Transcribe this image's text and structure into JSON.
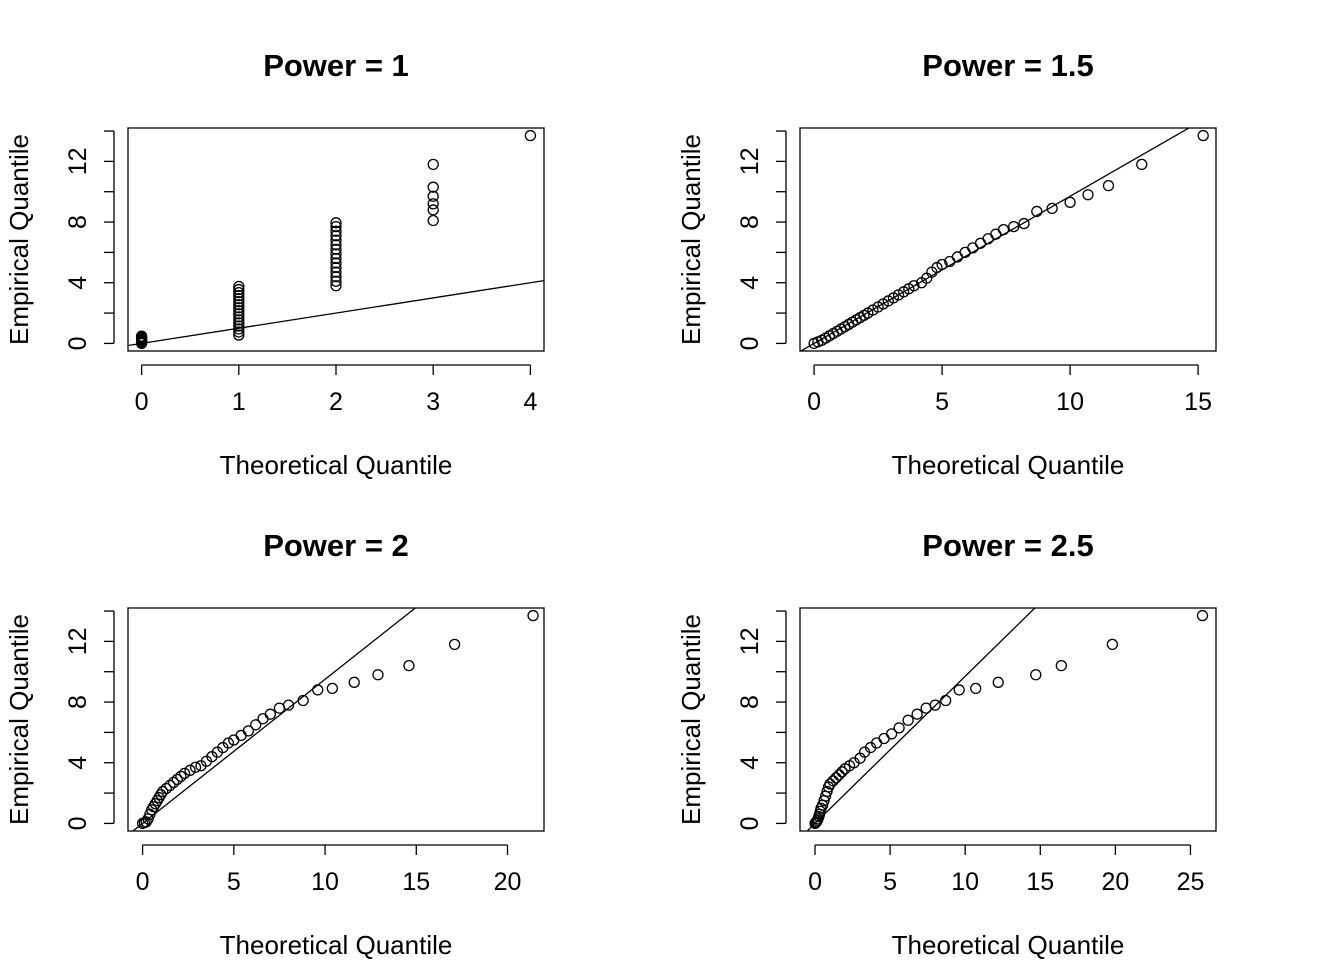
{
  "chart_data": [
    {
      "type": "scatter",
      "title": "Power =  1",
      "xlabel": "Theoretical Quantile",
      "ylabel": "Empirical Quantile",
      "xlim": [
        -0.14,
        4.14
      ],
      "ylim": [
        -0.5,
        14.2
      ],
      "xticks": [
        "0",
        "1",
        "2",
        "3",
        "4"
      ],
      "yticks": [
        "0",
        "4",
        "8",
        "12"
      ],
      "reference_line": {
        "intercept": 0,
        "slope": 1
      },
      "points": [
        [
          0,
          0.0
        ],
        [
          0,
          0.06
        ],
        [
          0,
          0.12
        ],
        [
          0,
          0.18
        ],
        [
          0,
          0.24
        ],
        [
          0,
          0.3
        ],
        [
          0,
          0.36
        ],
        [
          0,
          0.42
        ],
        [
          0,
          0.48
        ],
        [
          1,
          0.55
        ],
        [
          1,
          0.75
        ],
        [
          1,
          0.95
        ],
        [
          1,
          1.15
        ],
        [
          1,
          1.35
        ],
        [
          1,
          1.55
        ],
        [
          1,
          1.75
        ],
        [
          1,
          1.95
        ],
        [
          1,
          2.15
        ],
        [
          1,
          2.35
        ],
        [
          1,
          2.55
        ],
        [
          1,
          2.75
        ],
        [
          1,
          2.95
        ],
        [
          1,
          3.15
        ],
        [
          1,
          3.35
        ],
        [
          1,
          3.55
        ],
        [
          1,
          3.75
        ],
        [
          2,
          3.8
        ],
        [
          2,
          4.1
        ],
        [
          2,
          4.4
        ],
        [
          2,
          4.7
        ],
        [
          2,
          5.0
        ],
        [
          2,
          5.3
        ],
        [
          2,
          5.6
        ],
        [
          2,
          5.9
        ],
        [
          2,
          6.2
        ],
        [
          2,
          6.5
        ],
        [
          2,
          6.8
        ],
        [
          2,
          7.1
        ],
        [
          2,
          7.4
        ],
        [
          2,
          7.7
        ],
        [
          2,
          7.95
        ],
        [
          3,
          8.1
        ],
        [
          3,
          8.8
        ],
        [
          3,
          9.2
        ],
        [
          3,
          9.7
        ],
        [
          3,
          10.3
        ],
        [
          3,
          11.8
        ],
        [
          4,
          13.7
        ]
      ]
    },
    {
      "type": "scatter",
      "title": "Power =  1.5",
      "xlabel": "Theoretical Quantile",
      "ylabel": "Empirical Quantile",
      "xlim": [
        -0.55,
        15.7
      ],
      "ylim": [
        -0.5,
        14.2
      ],
      "xticks": [
        "0",
        "5",
        "10",
        "15"
      ],
      "yticks": [
        "0",
        "4",
        "8",
        "12"
      ],
      "reference_line": {
        "intercept": 0,
        "slope": 0.97
      },
      "points": [
        [
          0.0,
          0.0
        ],
        [
          0.15,
          0.1
        ],
        [
          0.3,
          0.2
        ],
        [
          0.45,
          0.35
        ],
        [
          0.6,
          0.5
        ],
        [
          0.75,
          0.65
        ],
        [
          0.9,
          0.8
        ],
        [
          1.05,
          0.95
        ],
        [
          1.2,
          1.1
        ],
        [
          1.35,
          1.25
        ],
        [
          1.5,
          1.4
        ],
        [
          1.65,
          1.55
        ],
        [
          1.8,
          1.7
        ],
        [
          1.95,
          1.85
        ],
        [
          2.1,
          2.0
        ],
        [
          2.3,
          2.2
        ],
        [
          2.5,
          2.4
        ],
        [
          2.7,
          2.6
        ],
        [
          2.9,
          2.8
        ],
        [
          3.1,
          3.0
        ],
        [
          3.3,
          3.2
        ],
        [
          3.5,
          3.4
        ],
        [
          3.7,
          3.6
        ],
        [
          3.9,
          3.8
        ],
        [
          4.2,
          4.0
        ],
        [
          4.4,
          4.3
        ],
        [
          4.6,
          4.7
        ],
        [
          4.8,
          5.0
        ],
        [
          5.0,
          5.2
        ],
        [
          5.3,
          5.4
        ],
        [
          5.6,
          5.7
        ],
        [
          5.9,
          6.0
        ],
        [
          6.2,
          6.3
        ],
        [
          6.5,
          6.6
        ],
        [
          6.8,
          6.9
        ],
        [
          7.1,
          7.2
        ],
        [
          7.4,
          7.5
        ],
        [
          7.8,
          7.7
        ],
        [
          8.2,
          7.9
        ],
        [
          8.7,
          8.7
        ],
        [
          9.3,
          8.9
        ],
        [
          10.0,
          9.3
        ],
        [
          10.7,
          9.8
        ],
        [
          11.5,
          10.4
        ],
        [
          12.8,
          11.8
        ],
        [
          15.2,
          13.7
        ]
      ]
    },
    {
      "type": "scatter",
      "title": "Power =  2",
      "xlabel": "Theoretical Quantile",
      "ylabel": "Empirical Quantile",
      "xlim": [
        -0.8,
        22.0
      ],
      "ylim": [
        -0.5,
        14.2
      ],
      "xticks": [
        "0",
        "5",
        "10",
        "15",
        "20"
      ],
      "yticks": [
        "0",
        "4",
        "8",
        "12"
      ],
      "reference_line": {
        "intercept": 0,
        "slope": 0.95
      },
      "points": [
        [
          0.0,
          0.0
        ],
        [
          0.1,
          0.05
        ],
        [
          0.2,
          0.1
        ],
        [
          0.3,
          0.3
        ],
        [
          0.4,
          0.6
        ],
        [
          0.5,
          0.9
        ],
        [
          0.6,
          1.1
        ],
        [
          0.7,
          1.3
        ],
        [
          0.8,
          1.5
        ],
        [
          0.9,
          1.7
        ],
        [
          1.0,
          1.9
        ],
        [
          1.1,
          2.1
        ],
        [
          1.3,
          2.3
        ],
        [
          1.5,
          2.5
        ],
        [
          1.7,
          2.7
        ],
        [
          1.9,
          2.9
        ],
        [
          2.1,
          3.1
        ],
        [
          2.3,
          3.3
        ],
        [
          2.6,
          3.5
        ],
        [
          2.9,
          3.7
        ],
        [
          3.2,
          3.8
        ],
        [
          3.5,
          4.1
        ],
        [
          3.8,
          4.4
        ],
        [
          4.1,
          4.7
        ],
        [
          4.4,
          5.0
        ],
        [
          4.7,
          5.3
        ],
        [
          5.0,
          5.5
        ],
        [
          5.4,
          5.8
        ],
        [
          5.8,
          6.1
        ],
        [
          6.2,
          6.5
        ],
        [
          6.6,
          6.9
        ],
        [
          7.0,
          7.2
        ],
        [
          7.5,
          7.6
        ],
        [
          8.0,
          7.8
        ],
        [
          8.8,
          8.1
        ],
        [
          9.6,
          8.8
        ],
        [
          10.4,
          8.9
        ],
        [
          11.6,
          9.3
        ],
        [
          12.9,
          9.8
        ],
        [
          14.6,
          10.4
        ],
        [
          17.1,
          11.8
        ],
        [
          21.4,
          13.7
        ]
      ]
    },
    {
      "type": "scatter",
      "title": "Power =  2.5",
      "xlabel": "Theoretical Quantile",
      "ylabel": "Empirical Quantile",
      "xlim": [
        -1.0,
        26.7
      ],
      "ylim": [
        -0.5,
        14.2
      ],
      "xticks": [
        "0",
        "5",
        "10",
        "15",
        "20",
        "25"
      ],
      "yticks": [
        "0",
        "4",
        "8",
        "12"
      ],
      "reference_line": {
        "intercept": 0,
        "slope": 0.97
      },
      "points": [
        [
          0.0,
          0.0
        ],
        [
          0.05,
          0.05
        ],
        [
          0.1,
          0.1
        ],
        [
          0.15,
          0.2
        ],
        [
          0.2,
          0.3
        ],
        [
          0.25,
          0.45
        ],
        [
          0.3,
          0.6
        ],
        [
          0.35,
          0.8
        ],
        [
          0.4,
          1.0
        ],
        [
          0.5,
          1.2
        ],
        [
          0.6,
          1.5
        ],
        [
          0.7,
          1.8
        ],
        [
          0.8,
          2.1
        ],
        [
          0.9,
          2.4
        ],
        [
          1.0,
          2.6
        ],
        [
          1.2,
          2.8
        ],
        [
          1.4,
          3.0
        ],
        [
          1.6,
          3.2
        ],
        [
          1.8,
          3.4
        ],
        [
          2.0,
          3.6
        ],
        [
          2.3,
          3.8
        ],
        [
          2.6,
          4.0
        ],
        [
          3.0,
          4.3
        ],
        [
          3.3,
          4.7
        ],
        [
          3.7,
          5.0
        ],
        [
          4.1,
          5.3
        ],
        [
          4.6,
          5.6
        ],
        [
          5.1,
          5.9
        ],
        [
          5.6,
          6.3
        ],
        [
          6.2,
          6.8
        ],
        [
          6.8,
          7.2
        ],
        [
          7.4,
          7.6
        ],
        [
          8.0,
          7.8
        ],
        [
          8.7,
          8.1
        ],
        [
          9.6,
          8.8
        ],
        [
          10.7,
          8.9
        ],
        [
          12.2,
          9.3
        ],
        [
          14.7,
          9.8
        ],
        [
          16.4,
          10.4
        ],
        [
          19.8,
          11.8
        ],
        [
          25.8,
          13.7
        ]
      ]
    }
  ]
}
